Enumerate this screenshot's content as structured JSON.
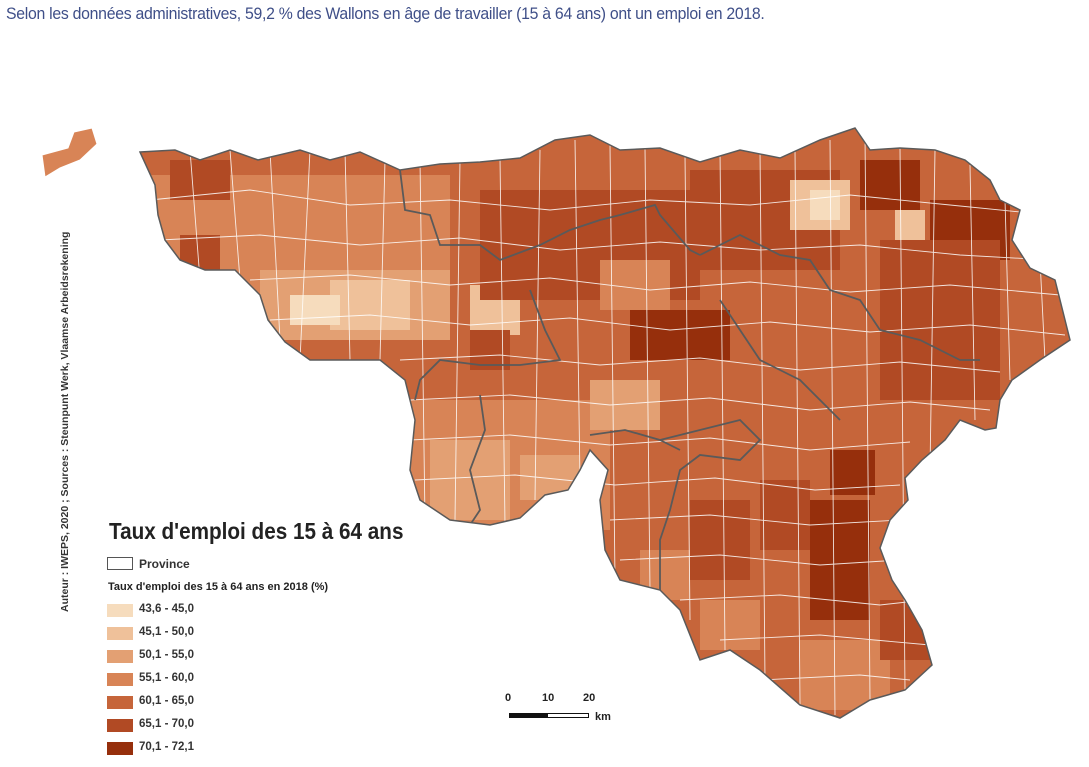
{
  "caption": "Selon les données administratives, 59,2 % des Wallons en âge de travailler (15 à 64 ans) ont un emploi en 2018.",
  "credits": "Auteur : IWEPS, 2020 ; Sources : Steunpunt Werk, Vlaamse Arbeidsrekening",
  "legend": {
    "title": "Taux d'emploi des 15 à 64 ans",
    "province_label": "Province",
    "subtitle": "Taux d'emploi des 15 à 64 ans en 2018 (%)",
    "classes": [
      {
        "label": "43,6 - 45,0",
        "color": "#f6dcbd"
      },
      {
        "label": "45,1 - 50,0",
        "color": "#efc19a"
      },
      {
        "label": "50,1 - 55,0",
        "color": "#e3a073"
      },
      {
        "label": "55,1 - 60,0",
        "color": "#d88456"
      },
      {
        "label": "60,1 - 65,0",
        "color": "#c6653a"
      },
      {
        "label": "65,1 - 70,0",
        "color": "#b14a24"
      },
      {
        "label": "70,1 - 72,1",
        "color": "#962f0c"
      }
    ]
  },
  "scalebar": {
    "ticks": [
      "0",
      "10",
      "20"
    ],
    "unit": "km"
  },
  "colors": {
    "caption": "#3f4f88",
    "province_border": "#5a5a5a",
    "commune_border": "#ffffff"
  }
}
